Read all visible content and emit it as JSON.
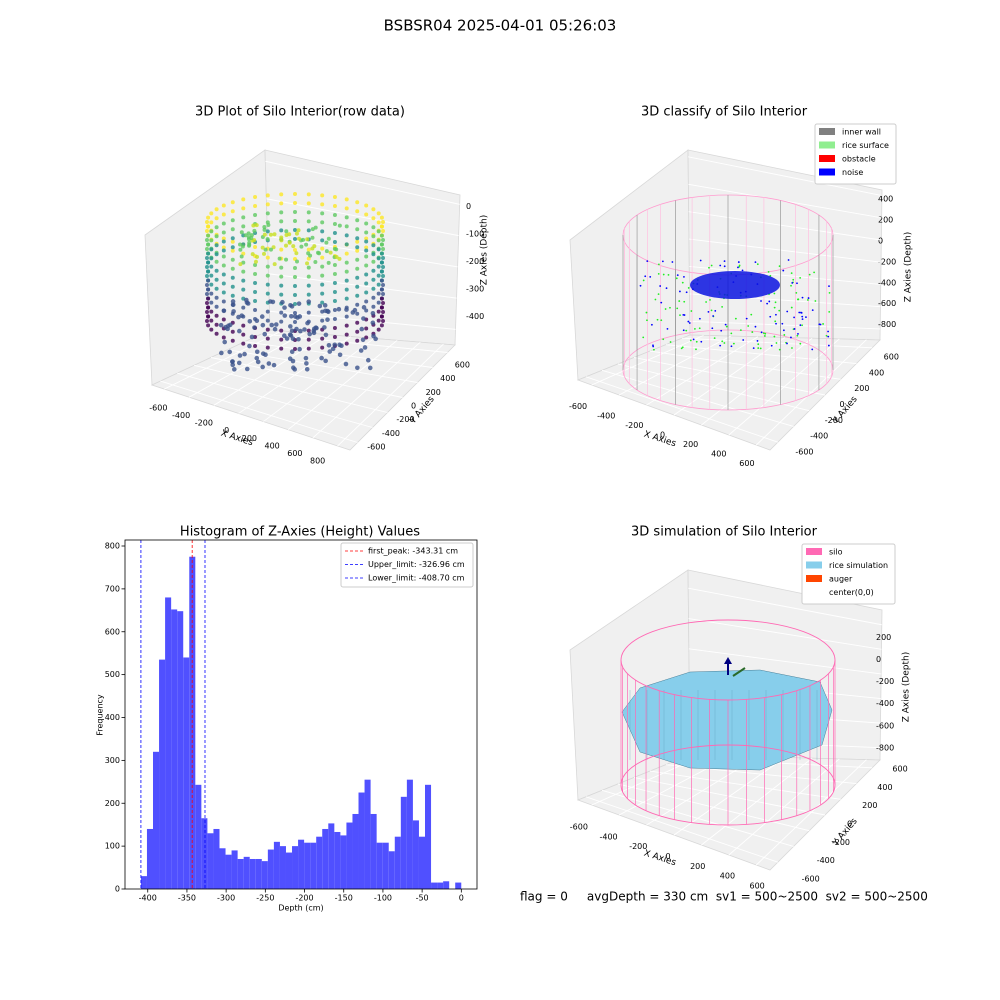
{
  "title": "BSBSR04 2025-04-01 05:26:03",
  "status": "flag = 0     avgDepth = 330 cm  sv1 = 500~2500  sv2 = 500~2500",
  "chart_data": [
    {
      "type": "scatter3d",
      "title": "3D Plot of Silo Interior(row data)",
      "xlabel": "X Axies",
      "ylabel": "Y Axies",
      "zlabel": "Z Axies (Depth)",
      "xlim": [
        -700,
        900
      ],
      "xticks": [
        -600,
        -400,
        -200,
        0,
        200,
        400,
        600,
        800
      ],
      "ylim": [
        -700,
        700
      ],
      "yticks": [
        -600,
        -400,
        -200,
        0,
        200,
        400,
        600
      ],
      "zlim": [
        -450,
        30
      ],
      "zticks": [
        -400,
        -300,
        -200,
        -100,
        0
      ]
    },
    {
      "type": "scatter3d",
      "title": "3D classify of Silo Interior",
      "xlabel": "X Axies",
      "ylabel": "Y Axies",
      "zlabel": "Z Axies (Depth)",
      "xlim": [
        -700,
        700
      ],
      "xticks": [
        -600,
        -400,
        -200,
        0,
        200,
        400,
        600
      ],
      "ylim": [
        -700,
        700
      ],
      "yticks": [
        -600,
        -400,
        -200,
        0,
        200,
        400,
        600
      ],
      "zlim": [
        -900,
        450
      ],
      "zticks": [
        -800,
        -600,
        -400,
        -200,
        0,
        200,
        400
      ],
      "legend": [
        {
          "name": "inner wall",
          "color": "#808080"
        },
        {
          "name": "rice surface",
          "color": "#90ee90"
        },
        {
          "name": "obstacle",
          "color": "#ff0000"
        },
        {
          "name": "noise",
          "color": "#0000ff"
        }
      ]
    },
    {
      "type": "histogram",
      "title": "Histogram of Z-Axies (Height) Values",
      "xlabel": "Depth (cm)",
      "ylabel": "Frequency",
      "color": "#5050ff",
      "bins": [
        -408.7,
        -400.99,
        -393.28,
        -385.57,
        -377.86,
        -370.15,
        -362.44,
        -354.73,
        -347.02,
        -339.31,
        -331.6,
        -323.89,
        -316.18,
        -308.47,
        -300.76,
        -293.05,
        -285.34,
        -277.63,
        -269.92,
        -262.21,
        -254.5,
        -246.79,
        -239.08,
        -231.37,
        -223.66,
        -215.95,
        -208.24,
        -200.53,
        -192.82,
        -185.11,
        -177.4,
        -169.69,
        -161.98,
        -154.27,
        -146.56,
        -138.85,
        -131.14,
        -123.43,
        -115.72,
        -108.01,
        -100.3,
        -92.59,
        -84.88,
        -77.17,
        -69.46,
        -61.75,
        -54.04,
        -46.33,
        -38.62,
        -30.91,
        -23.2,
        -15.49,
        -7.78,
        -0.07
      ],
      "values": [
        30,
        140,
        320,
        535,
        680,
        652,
        648,
        540,
        775,
        243,
        165,
        130,
        140,
        95,
        80,
        90,
        70,
        75,
        70,
        70,
        65,
        92,
        110,
        100,
        85,
        100,
        115,
        108,
        108,
        122,
        140,
        153,
        133,
        125,
        155,
        175,
        225,
        255,
        175,
        108,
        108,
        88,
        122,
        215,
        255,
        160,
        122,
        243,
        15,
        15,
        18,
        0,
        15
      ],
      "xlim": [
        -429,
        20
      ],
      "xticks": [
        -400,
        -350,
        -300,
        -250,
        -200,
        -150,
        -100,
        -50,
        0
      ],
      "ylim": [
        0,
        814
      ],
      "yticks": [
        0,
        100,
        200,
        300,
        400,
        500,
        600,
        700,
        800
      ],
      "vlines": [
        {
          "name": "first_peak: -343.31 cm",
          "value": -343.31,
          "color": "#ff0000"
        },
        {
          "name": "Upper_limit: -326.96 cm",
          "value": -326.96,
          "color": "#0000ff"
        },
        {
          "name": "Lower_limit: -408.70 cm",
          "value": -408.7,
          "color": "#0000ff"
        }
      ]
    },
    {
      "type": "surface3d",
      "title": "3D simulation of Silo Interior",
      "xlabel": "X Axies",
      "ylabel": "Y Axies",
      "zlabel": "Z Axies (Depth)",
      "xlim": [
        -700,
        700
      ],
      "xticks": [
        -600,
        -400,
        -200,
        0,
        200,
        400,
        600
      ],
      "ylim": [
        -700,
        700
      ],
      "yticks": [
        -600,
        -400,
        -200,
        0,
        200,
        400,
        600
      ],
      "zlim": [
        -900,
        320
      ],
      "zticks": [
        -800,
        -600,
        -400,
        -200,
        0,
        200
      ],
      "legend": [
        {
          "name": "silo",
          "color": "#ff69b4"
        },
        {
          "name": "rice simulation",
          "color": "#87ceeb"
        },
        {
          "name": "auger",
          "color": "#ff4500"
        },
        {
          "name": "center(0,0)",
          "color": "#ffffff"
        }
      ]
    }
  ]
}
